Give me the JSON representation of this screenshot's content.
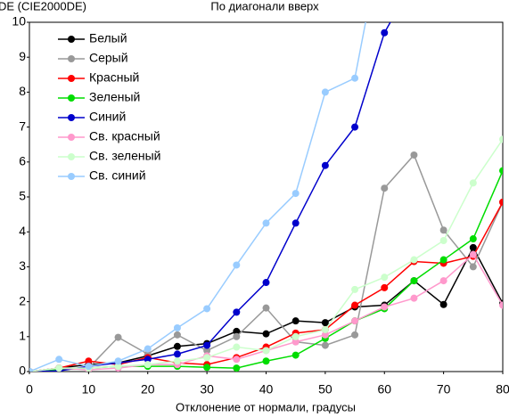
{
  "chart_data": {
    "type": "line",
    "title": "По диагонали вверх",
    "y_label": "DE (CIE2000DE)",
    "x_label": "Отклонение от нормали, градусы",
    "x": [
      0,
      5,
      10,
      15,
      20,
      25,
      30,
      35,
      40,
      45,
      50,
      55,
      60,
      65,
      70,
      75,
      80
    ],
    "xlim": [
      0,
      80
    ],
    "xticks": [
      0,
      10,
      20,
      30,
      40,
      50,
      60,
      70,
      80
    ],
    "ylim": [
      0,
      10
    ],
    "yticks": [
      0,
      1,
      2,
      3,
      4,
      5,
      6,
      7,
      8,
      9,
      10
    ],
    "grid": false,
    "legend": "upper left",
    "series": [
      {
        "name": "Белый",
        "color": "#000000",
        "values": [
          0,
          0.1,
          0.2,
          0.25,
          0.45,
          0.72,
          0.8,
          1.15,
          1.08,
          1.45,
          1.4,
          1.85,
          1.9,
          2.6,
          1.92,
          3.55,
          1.95
        ]
      },
      {
        "name": "Серый",
        "color": "#999999",
        "values": [
          0,
          0.1,
          0.1,
          0.98,
          0.5,
          1.05,
          0.6,
          1.0,
          1.82,
          0.85,
          0.75,
          1.05,
          5.25,
          6.2,
          4.05,
          3.0,
          4.85
        ]
      },
      {
        "name": "Красный",
        "color": "#ff0000",
        "values": [
          0,
          0.1,
          0.3,
          0.2,
          0.4,
          0.25,
          0.2,
          0.4,
          0.7,
          1.1,
          1.2,
          1.9,
          2.4,
          3.15,
          3.1,
          3.3,
          4.85
        ]
      },
      {
        "name": "Зеленый",
        "color": "#00dd00",
        "values": [
          0,
          0.05,
          0.1,
          0.15,
          0.15,
          0.15,
          0.12,
          0.1,
          0.3,
          0.47,
          0.95,
          1.45,
          1.8,
          2.6,
          3.2,
          3.8,
          5.75
        ]
      },
      {
        "name": "Синий",
        "color": "#0000cc",
        "values": [
          0,
          0.02,
          0.15,
          0.25,
          0.35,
          0.5,
          0.75,
          1.7,
          2.55,
          4.25,
          5.9,
          7.0,
          9.7,
          11.2,
          null,
          null,
          null
        ]
      },
      {
        "name": "Св. красный",
        "color": "#ff99cc",
        "values": [
          0,
          0.1,
          0.05,
          0.1,
          0.2,
          0.2,
          0.45,
          0.35,
          0.6,
          0.85,
          1.05,
          1.45,
          1.85,
          2.1,
          2.6,
          3.35,
          1.9
        ]
      },
      {
        "name": "Св. зеленый",
        "color": "#ccffcc",
        "values": [
          0,
          0.1,
          0.1,
          0.15,
          0.2,
          0.3,
          0.4,
          0.7,
          0.6,
          1.0,
          1.2,
          2.35,
          2.7,
          3.2,
          3.75,
          5.4,
          6.65
        ]
      },
      {
        "name": "Св. синий",
        "color": "#99ccff",
        "values": [
          0,
          0.35,
          0.15,
          0.3,
          0.65,
          1.25,
          1.8,
          3.05,
          4.25,
          5.1,
          8.0,
          8.4,
          12.8,
          null,
          null,
          null,
          null
        ]
      }
    ]
  }
}
